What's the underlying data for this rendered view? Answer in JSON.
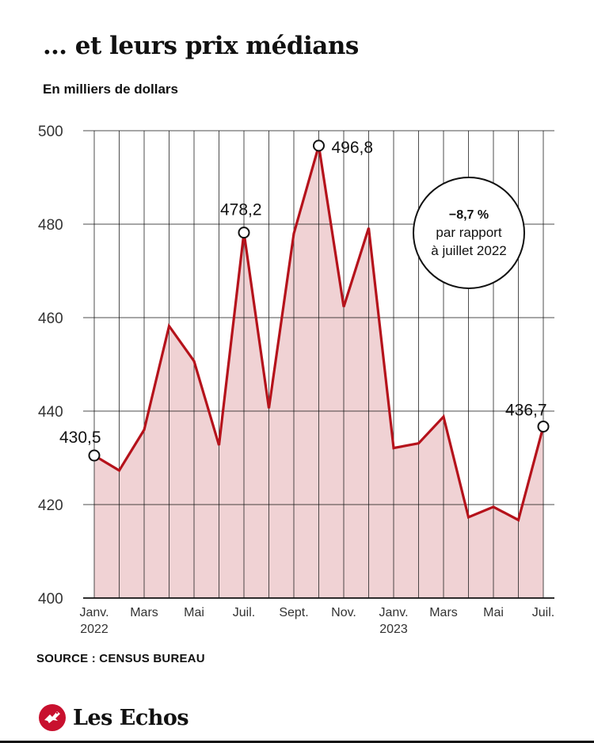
{
  "title": "… et leurs prix médians",
  "subtitle": "En milliers de dollars",
  "source": "SOURCE : CENSUS BUREAU",
  "brand": {
    "name": "Les Echos",
    "logo_icon": "les-echos-logo-icon"
  },
  "colors": {
    "line": "#b5121b",
    "area": "#f0d2d4",
    "grid": "#222222"
  },
  "chart_data": {
    "type": "area",
    "x": [
      "2022-01",
      "2022-02",
      "2022-03",
      "2022-04",
      "2022-05",
      "2022-06",
      "2022-07",
      "2022-08",
      "2022-09",
      "2022-10",
      "2022-11",
      "2022-12",
      "2023-01",
      "2023-02",
      "2023-03",
      "2023-04",
      "2023-05",
      "2023-06",
      "2023-07"
    ],
    "series": [
      {
        "values": [
          430.5,
          427.3,
          436.0,
          458.2,
          450.7,
          432.7,
          478.2,
          440.6,
          478.0,
          496.8,
          462.3,
          479.2,
          432.1,
          433.1,
          438.8,
          417.3,
          419.5,
          416.7,
          436.7
        ]
      }
    ],
    "ylim": [
      400,
      500
    ],
    "yticks": [
      400,
      420,
      440,
      460,
      480,
      500
    ],
    "ytick_labels": [
      "400",
      "420",
      "440",
      "460",
      "480",
      "500"
    ],
    "xtick_labels": [
      {
        "index": 0,
        "lines": [
          "Janv.",
          "2022"
        ]
      },
      {
        "index": 2,
        "lines": [
          "Mars"
        ]
      },
      {
        "index": 4,
        "lines": [
          "Mai"
        ]
      },
      {
        "index": 6,
        "lines": [
          "Juil."
        ]
      },
      {
        "index": 8,
        "lines": [
          "Sept."
        ]
      },
      {
        "index": 10,
        "lines": [
          "Nov."
        ]
      },
      {
        "index": 12,
        "lines": [
          "Janv.",
          "2023"
        ]
      },
      {
        "index": 14,
        "lines": [
          "Mars"
        ]
      },
      {
        "index": 16,
        "lines": [
          "Mai"
        ]
      },
      {
        "index": 18,
        "lines": [
          "Juil."
        ]
      }
    ],
    "point_labels": [
      {
        "index": 0,
        "text": "430,5"
      },
      {
        "index": 6,
        "text": "478,2"
      },
      {
        "index": 9,
        "text": "496,8"
      },
      {
        "index": 18,
        "text": "436,7"
      }
    ],
    "callout": {
      "lines": [
        "−8,7 %",
        "par rapport",
        "à juillet 2022"
      ]
    },
    "grid": true
  }
}
